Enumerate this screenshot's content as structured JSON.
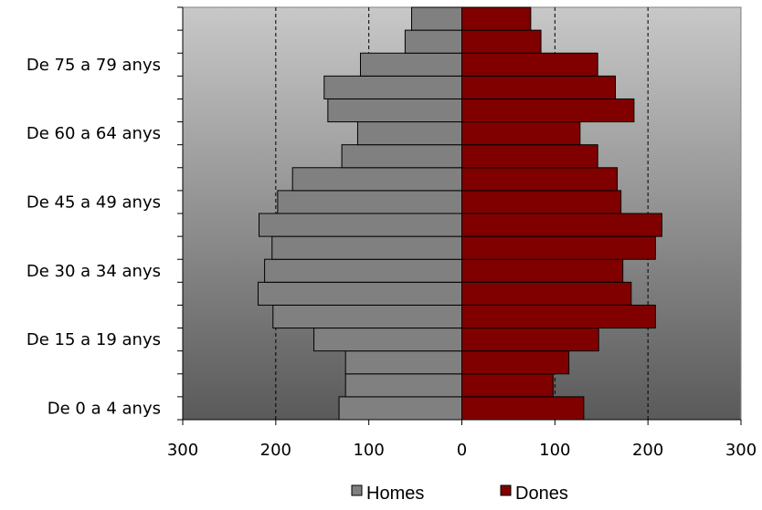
{
  "chart_data": {
    "type": "bar",
    "orientation": "horizontal",
    "layout": "population-pyramid",
    "title": "",
    "xlabel": "",
    "ylabel": "",
    "xlim": [
      -300,
      300
    ],
    "x_ticks": [
      -300,
      -200,
      -100,
      0,
      100,
      200,
      300
    ],
    "x_tick_labels": [
      "300",
      "200",
      "100",
      "0",
      "100",
      "200",
      "300"
    ],
    "grid": "vertical dashed at 100 and 200 on both sides",
    "legend_position": "bottom",
    "y_tick_labels": [
      {
        "category_index": 0,
        "text": "De 0 a 4 anys"
      },
      {
        "category_index": 3,
        "text": "De 15 a 19 anys"
      },
      {
        "category_index": 6,
        "text": "De 30 a 34 anys"
      },
      {
        "category_index": 9,
        "text": "De 45 a 49 anys"
      },
      {
        "category_index": 12,
        "text": "De 60 a 64 anys"
      },
      {
        "category_index": 15,
        "text": "De 75 a 79 anys"
      }
    ],
    "category_count": 18,
    "series": [
      {
        "name": "Homes",
        "side": "left",
        "color": "#808080",
        "values": [
          132,
          125,
          125,
          159,
          203,
          219,
          212,
          204,
          218,
          198,
          182,
          129,
          112,
          144,
          148,
          109,
          61,
          54
        ]
      },
      {
        "name": "Dones",
        "side": "right",
        "color": "#800000",
        "values": [
          131,
          98,
          115,
          147,
          208,
          182,
          173,
          208,
          215,
          171,
          167,
          146,
          127,
          185,
          165,
          146,
          85,
          74
        ]
      }
    ]
  },
  "colors": {
    "plot_gradient_top": "#c8c8c8",
    "plot_gradient_bottom": "#5a5a5a",
    "bar_stroke": "#000000"
  }
}
